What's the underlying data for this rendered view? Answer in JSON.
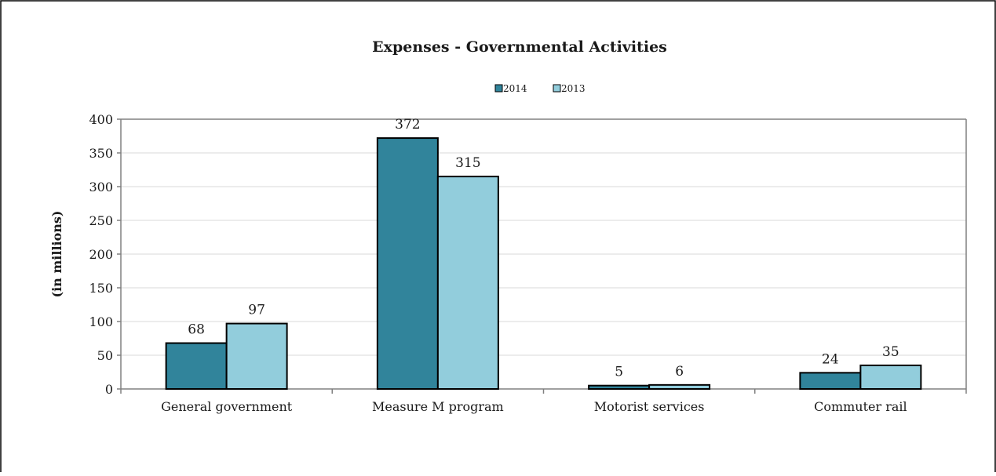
{
  "chart_data": {
    "type": "bar",
    "title": "Expenses - Governmental Activities",
    "xlabel": "",
    "ylabel": "(in millions)",
    "ylim": [
      0,
      400
    ],
    "yticks": [
      0,
      50,
      100,
      150,
      200,
      250,
      300,
      350,
      400
    ],
    "grid": true,
    "legend_position": "top-center",
    "categories": [
      "General government",
      "Measure M program",
      "Motorist services",
      "Commuter rail"
    ],
    "series": [
      {
        "name": "2014",
        "values": [
          68,
          372,
          5,
          24
        ],
        "color": "#31849b"
      },
      {
        "name": "2013",
        "values": [
          97,
          315,
          6,
          35
        ],
        "color": "#92cddc"
      }
    ]
  }
}
